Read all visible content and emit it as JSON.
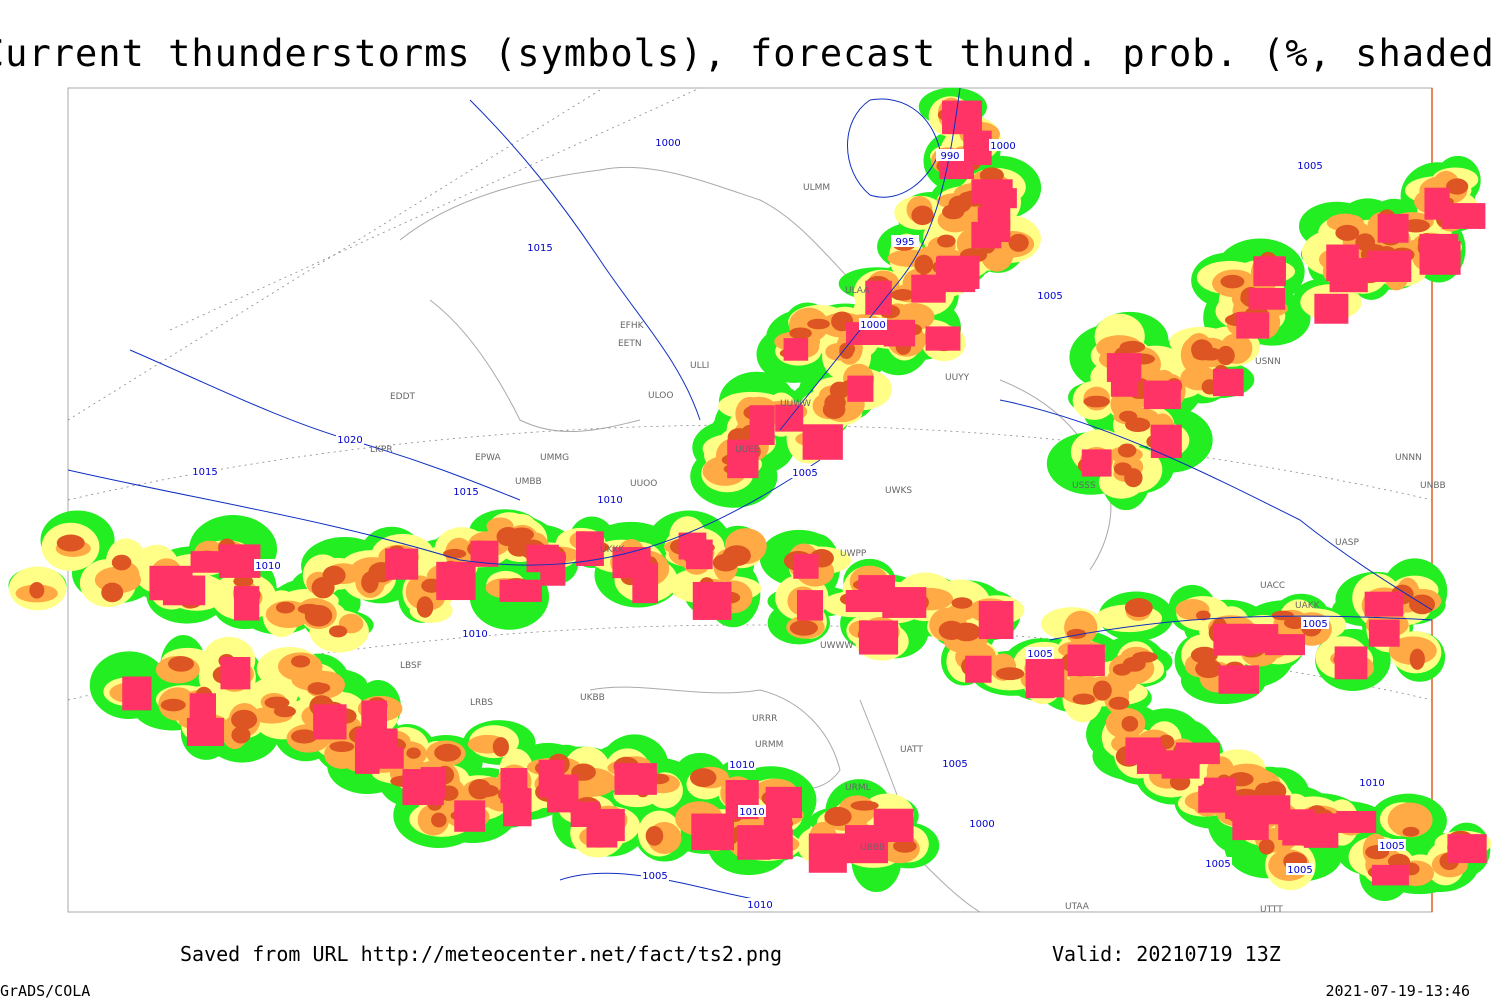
{
  "header": {
    "title": "Current thunderstorms (symbols), forecast thund. prob. (%, shaded)"
  },
  "footer": {
    "source": "Saved from URL http://meteocenter.net/fact/ts2.png",
    "valid": "Valid: 20210719 13Z",
    "software": "GrADS/COLA",
    "timestamp": "2021-07-19-13:46"
  },
  "isobar_labels": [
    "1000",
    "990",
    "1000",
    "1005",
    "1015",
    "995",
    "1005",
    "1000",
    "1020",
    "1015",
    "1015",
    "1005",
    "1010",
    "1010",
    "1010",
    "1005",
    "1005",
    "1010",
    "1010",
    "1005",
    "1005",
    "1010",
    "1005",
    "1000",
    "1005",
    "1005",
    "1010"
  ],
  "stations": [
    "EFHK",
    "EETN",
    "ULLI",
    "ULOO",
    "UUWW",
    "UUYY",
    "EDDT",
    "EPWA",
    "UMMG",
    "UMBB",
    "UKKK",
    "UKBB",
    "UUOO",
    "URRR",
    "URMM",
    "URML",
    "UBBB",
    "UATT",
    "UWWW",
    "UWPP",
    "UWKS",
    "UNNN",
    "UNBB",
    "UASP",
    "UACC",
    "UAKK",
    "UTAA",
    "USSS",
    "USNN",
    "ULAA",
    "UUEE",
    "ULMM",
    "UTTT",
    "LKPR",
    "LBSF",
    "LRBS"
  ]
}
